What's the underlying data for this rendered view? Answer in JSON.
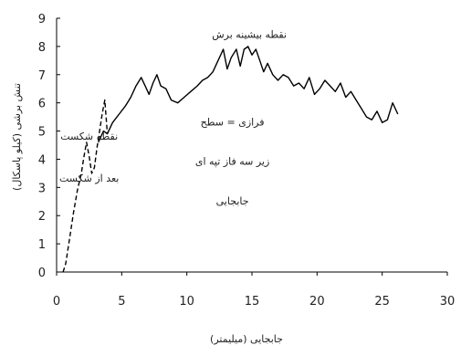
{
  "chart_data": {
    "type": "line",
    "title": "",
    "xlabel": "جابجایی (میلیمتر)",
    "ylabel": "تنش برشی (کیلو پاسکال)",
    "xlim": [
      0,
      30
    ],
    "ylim": [
      0,
      9
    ],
    "x_ticks": [
      "0",
      "5",
      "10",
      "15",
      "20",
      "25",
      "30"
    ],
    "y_ticks": [
      "0",
      "1",
      "2",
      "3",
      "4",
      "5",
      "6",
      "7",
      "8",
      "9"
    ],
    "grid": false,
    "legend": "none",
    "series": [
      {
        "style": "solid",
        "x": [
          3.2,
          3.6,
          3.9,
          4.3,
          4.8,
          5.3,
          5.7,
          6.1,
          6.5,
          6.8,
          7.1,
          7.4,
          7.7,
          8.0,
          8.4,
          8.8,
          9.3,
          9.8,
          10.3,
          10.8,
          11.2,
          11.6,
          12.0,
          12.4,
          12.8,
          13.1,
          13.4,
          13.8,
          14.1,
          14.4,
          14.7,
          15.0,
          15.3,
          15.6,
          15.9,
          16.2,
          16.6,
          17.0,
          17.4,
          17.8,
          18.2,
          18.6,
          19.0,
          19.4,
          19.8,
          20.2,
          20.6,
          21.0,
          21.4,
          21.8,
          22.2,
          22.6,
          23.0,
          23.4,
          23.8,
          24.2,
          24.6,
          25.0,
          25.4,
          25.8,
          26.2
        ],
        "y": [
          4.6,
          5.0,
          4.9,
          5.3,
          5.6,
          5.9,
          6.2,
          6.6,
          6.9,
          6.6,
          6.3,
          6.7,
          7.0,
          6.6,
          6.5,
          6.1,
          6.0,
          6.2,
          6.4,
          6.6,
          6.8,
          6.9,
          7.1,
          7.5,
          7.9,
          7.2,
          7.6,
          7.9,
          7.3,
          7.9,
          8.0,
          7.7,
          7.9,
          7.5,
          7.1,
          7.4,
          7.0,
          6.8,
          7.0,
          6.9,
          6.6,
          6.7,
          6.5,
          6.9,
          6.3,
          6.5,
          6.8,
          6.6,
          6.4,
          6.7,
          6.2,
          6.4,
          6.1,
          5.8,
          5.5,
          5.4,
          5.7,
          5.3,
          5.4,
          6.0,
          5.6
        ]
      },
      {
        "style": "dashed",
        "x": [
          0.5,
          0.7,
          1.0,
          1.3,
          1.6,
          1.9,
          2.1,
          2.3,
          2.5,
          2.7,
          2.9,
          3.1,
          3.3,
          3.5,
          3.7,
          3.8,
          3.9
        ],
        "y": [
          0.0,
          0.3,
          1.2,
          2.1,
          2.9,
          3.5,
          4.1,
          4.6,
          4.1,
          3.5,
          3.7,
          4.4,
          5.0,
          5.6,
          6.1,
          5.5,
          4.9
        ]
      }
    ],
    "annotations": [
      {
        "text": "نقطه بیشینه برش",
        "x": 14.8,
        "y": 8.3
      },
      {
        "text": "نقطه شکست",
        "x": 2.5,
        "y": 4.7
      },
      {
        "text": "بعد از شکست",
        "x": 2.5,
        "y": 3.2
      },
      {
        "text": "فرازی = سطح",
        "x": 13.5,
        "y": 5.2
      },
      {
        "text": "زیر سه فاز تپه ای",
        "x": 13.5,
        "y": 3.8
      },
      {
        "text": "جابجایی",
        "x": 13.5,
        "y": 2.4
      }
    ]
  }
}
